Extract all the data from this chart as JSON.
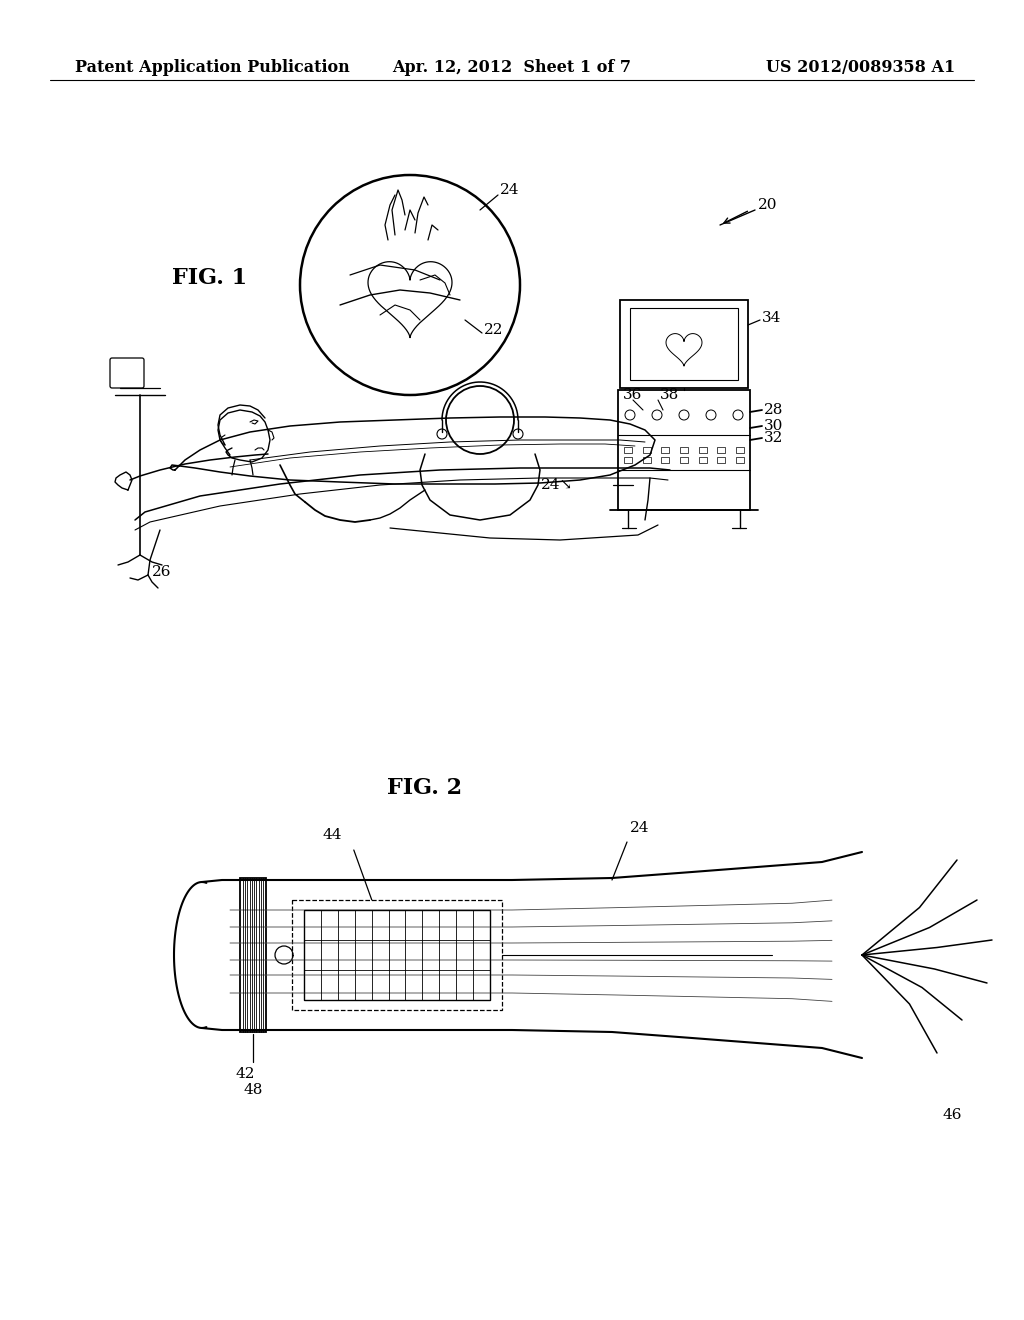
{
  "background_color": "#ffffff",
  "page_width": 10.24,
  "page_height": 13.2,
  "header_left": "Patent Application Publication",
  "header_center": "Apr. 12, 2012  Sheet 1 of 7",
  "header_right": "US 2012/0089358 A1",
  "header_fontsize": 11.5,
  "fig1_label": "FIG. 1",
  "fig2_label": "FIG. 2",
  "label_fontsize": 16,
  "line_color": "#000000",
  "annotation_fontsize": 11
}
